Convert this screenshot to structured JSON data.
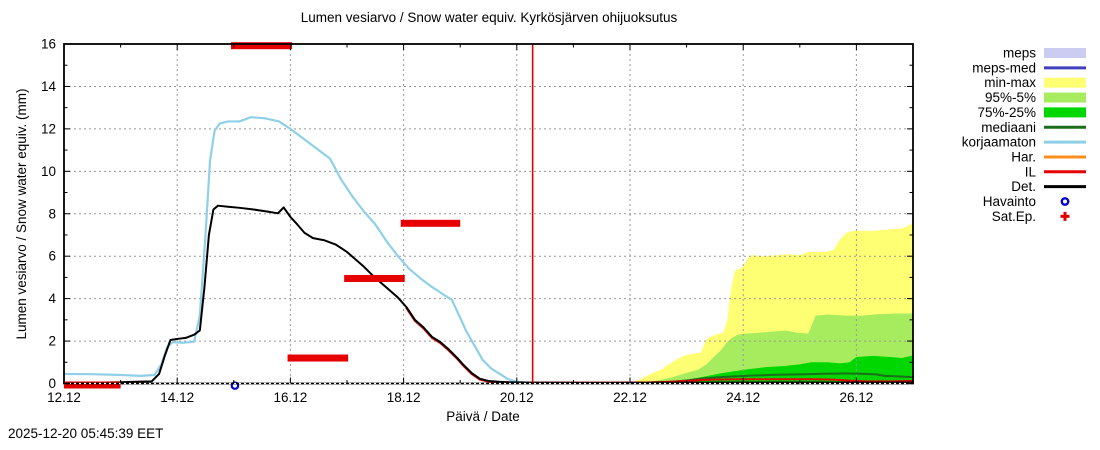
{
  "title": "Lumen vesiarvo / Snow water equiv.  Kyrkösjärven ohijuoksutus",
  "timestamp": "2025-12-20 05:45:39 EET",
  "axes": {
    "x_label": "Päivä / Date",
    "y_label": "Lumen vesiarvo / Snow water equiv. (mm)"
  },
  "legend": {
    "items": [
      {
        "label": "meps",
        "type": "band",
        "color": "#ccccf2"
      },
      {
        "label": "meps-med",
        "type": "line",
        "color": "#4040bf"
      },
      {
        "label": "min-max",
        "type": "band",
        "color": "#ffff73"
      },
      {
        "label": "95%-5%",
        "type": "band",
        "color": "#a6ec5e"
      },
      {
        "label": "75%-25%",
        "type": "band",
        "color": "#00d600"
      },
      {
        "label": "mediaani",
        "type": "line",
        "color": "#1c6e1c"
      },
      {
        "label": "korjaamaton",
        "type": "line",
        "color": "#8fd0e8"
      },
      {
        "label": "Har.",
        "type": "line",
        "color": "#ff8c1e"
      },
      {
        "label": "IL",
        "type": "line",
        "color": "#e60000"
      },
      {
        "label": "Det.",
        "type": "line",
        "color": "#000000"
      },
      {
        "label": "Havainto",
        "type": "marker-circle",
        "color": "#0000dd"
      },
      {
        "label": "Sat.Ep.",
        "type": "marker-plus",
        "color": "#e60000"
      }
    ]
  },
  "chart_data": {
    "type": "line",
    "title": "Lumen vesiarvo / Snow water equiv.  Kyrkösjärven ohijuoksutus",
    "xlabel": "Päivä / Date",
    "ylabel": "Lumen vesiarvo / Snow water equiv. (mm)",
    "x_axis": {
      "min": 12,
      "max": 27,
      "unit": "day of December",
      "tick_values": [
        12,
        14,
        16,
        18,
        20,
        22,
        24,
        26
      ],
      "tick_labels": [
        "12.12",
        "14.12",
        "16.12",
        "18.12",
        "20.12",
        "22.12",
        "24.12",
        "26.12"
      ],
      "minor_tick_step": 1,
      "grid_values": [
        14,
        16,
        18,
        20,
        22,
        24,
        26
      ]
    },
    "y_axis": {
      "min": 0,
      "max": 16,
      "tick_values": [
        0,
        2,
        4,
        6,
        8,
        10,
        12,
        14,
        16
      ],
      "tick_labels": [
        "0",
        "2",
        "4",
        "6",
        "8",
        "10",
        "12",
        "14",
        "16"
      ],
      "minor_tick_step": 1,
      "grid_values": [
        2,
        4,
        6,
        8,
        10,
        12,
        14
      ]
    },
    "grid": true,
    "now_line": {
      "x": 20.28,
      "color": "#dd0000"
    },
    "bands": [
      {
        "name": "min-max",
        "color": "#ffff73",
        "baseline": 0,
        "top": [
          [
            21.95,
            0.02
          ],
          [
            22.1,
            0.1
          ],
          [
            22.25,
            0.3
          ],
          [
            22.4,
            0.5
          ],
          [
            22.55,
            0.65
          ],
          [
            22.65,
            0.85
          ],
          [
            22.8,
            1.1
          ],
          [
            22.95,
            1.3
          ],
          [
            23.1,
            1.4
          ],
          [
            23.25,
            1.45
          ],
          [
            23.35,
            2.1
          ],
          [
            23.5,
            2.3
          ],
          [
            23.65,
            2.4
          ],
          [
            23.72,
            3.0
          ],
          [
            23.78,
            4.4
          ],
          [
            23.85,
            5.3
          ],
          [
            24.0,
            5.5
          ],
          [
            24.08,
            5.9
          ],
          [
            24.15,
            6.05
          ],
          [
            24.35,
            6.0
          ],
          [
            24.6,
            6.05
          ],
          [
            24.8,
            6.1
          ],
          [
            25.0,
            6.05
          ],
          [
            25.15,
            6.2
          ],
          [
            25.45,
            6.2
          ],
          [
            25.6,
            6.3
          ],
          [
            25.7,
            6.75
          ],
          [
            25.82,
            7.1
          ],
          [
            25.95,
            7.2
          ],
          [
            26.3,
            7.2
          ],
          [
            26.55,
            7.25
          ],
          [
            26.8,
            7.3
          ],
          [
            27.0,
            7.55
          ]
        ]
      },
      {
        "name": "95%-5%",
        "color": "#a6ec5e",
        "baseline": 0,
        "top": [
          [
            22.2,
            0.02
          ],
          [
            22.5,
            0.15
          ],
          [
            22.75,
            0.3
          ],
          [
            23.0,
            0.5
          ],
          [
            23.2,
            0.65
          ],
          [
            23.35,
            0.9
          ],
          [
            23.5,
            1.3
          ],
          [
            23.6,
            1.55
          ],
          [
            23.7,
            1.9
          ],
          [
            23.8,
            2.15
          ],
          [
            23.9,
            2.3
          ],
          [
            24.05,
            2.35
          ],
          [
            24.3,
            2.4
          ],
          [
            24.55,
            2.45
          ],
          [
            24.75,
            2.5
          ],
          [
            24.95,
            2.4
          ],
          [
            25.15,
            2.35
          ],
          [
            25.28,
            3.2
          ],
          [
            25.5,
            3.25
          ],
          [
            25.8,
            3.2
          ],
          [
            26.1,
            3.2
          ],
          [
            26.4,
            3.27
          ],
          [
            26.7,
            3.3
          ],
          [
            27.0,
            3.3
          ]
        ]
      },
      {
        "name": "75%-25%",
        "color": "#00d600",
        "baseline": 0,
        "top": [
          [
            22.45,
            0.02
          ],
          [
            22.7,
            0.08
          ],
          [
            23.0,
            0.18
          ],
          [
            23.3,
            0.32
          ],
          [
            23.6,
            0.48
          ],
          [
            23.9,
            0.6
          ],
          [
            24.1,
            0.68
          ],
          [
            24.4,
            0.77
          ],
          [
            24.7,
            0.82
          ],
          [
            25.0,
            0.9
          ],
          [
            25.2,
            1.0
          ],
          [
            25.5,
            1.0
          ],
          [
            25.72,
            0.95
          ],
          [
            25.88,
            1.0
          ],
          [
            26.0,
            1.25
          ],
          [
            26.3,
            1.3
          ],
          [
            26.6,
            1.25
          ],
          [
            26.8,
            1.2
          ],
          [
            27.0,
            1.32
          ]
        ]
      }
    ],
    "series": [
      {
        "name": "korjaamaton",
        "color": "#8fd0e8",
        "width": 2.2,
        "points": [
          [
            12.0,
            0.45
          ],
          [
            12.5,
            0.44
          ],
          [
            13.0,
            0.4
          ],
          [
            13.35,
            0.36
          ],
          [
            13.6,
            0.4
          ],
          [
            13.72,
            0.9
          ],
          [
            13.82,
            1.7
          ],
          [
            13.92,
            1.95
          ],
          [
            14.1,
            1.92
          ],
          [
            14.3,
            1.97
          ],
          [
            14.4,
            3.2
          ],
          [
            14.5,
            7.0
          ],
          [
            14.58,
            10.5
          ],
          [
            14.66,
            11.9
          ],
          [
            14.75,
            12.25
          ],
          [
            14.9,
            12.35
          ],
          [
            15.1,
            12.35
          ],
          [
            15.3,
            12.55
          ],
          [
            15.55,
            12.5
          ],
          [
            15.8,
            12.35
          ],
          [
            16.0,
            12.0
          ],
          [
            16.2,
            11.6
          ],
          [
            16.5,
            11.0
          ],
          [
            16.7,
            10.6
          ],
          [
            16.9,
            9.6
          ],
          [
            17.1,
            8.8
          ],
          [
            17.3,
            8.1
          ],
          [
            17.5,
            7.5
          ],
          [
            17.7,
            6.7
          ],
          [
            17.9,
            6.0
          ],
          [
            18.1,
            5.4
          ],
          [
            18.3,
            4.95
          ],
          [
            18.5,
            4.55
          ],
          [
            18.7,
            4.2
          ],
          [
            18.85,
            3.95
          ],
          [
            19.0,
            3.1
          ],
          [
            19.1,
            2.5
          ],
          [
            19.25,
            1.8
          ],
          [
            19.4,
            1.1
          ],
          [
            19.55,
            0.7
          ],
          [
            19.7,
            0.45
          ],
          [
            19.85,
            0.2
          ],
          [
            20.0,
            0.08
          ],
          [
            20.25,
            0.02
          ]
        ]
      },
      {
        "name": "mediaani",
        "color": "#1c6e1c",
        "width": 2,
        "points": [
          [
            22.4,
            0.02
          ],
          [
            22.7,
            0.07
          ],
          [
            23.0,
            0.14
          ],
          [
            23.3,
            0.24
          ],
          [
            23.6,
            0.3
          ],
          [
            23.9,
            0.34
          ],
          [
            24.2,
            0.38
          ],
          [
            24.6,
            0.41
          ],
          [
            25.0,
            0.43
          ],
          [
            25.4,
            0.46
          ],
          [
            25.8,
            0.47
          ],
          [
            26.1,
            0.46
          ],
          [
            26.35,
            0.43
          ],
          [
            26.5,
            0.36
          ],
          [
            26.75,
            0.33
          ],
          [
            27.0,
            0.3
          ]
        ]
      },
      {
        "name": "IL",
        "color": "#e60000",
        "width": 2,
        "points": [
          [
            18.05,
            3.55
          ],
          [
            18.2,
            2.95
          ],
          [
            18.35,
            2.6
          ],
          [
            18.5,
            2.15
          ],
          [
            18.65,
            1.9
          ],
          [
            18.8,
            1.55
          ],
          [
            18.95,
            1.15
          ],
          [
            19.05,
            0.85
          ],
          [
            19.2,
            0.45
          ],
          [
            19.35,
            0.18
          ],
          [
            19.5,
            0.09
          ],
          [
            19.9,
            0.05
          ],
          [
            20.5,
            0.04
          ],
          [
            21.5,
            0.04
          ],
          [
            22.3,
            0.05
          ],
          [
            22.7,
            0.08
          ],
          [
            23.0,
            0.12
          ],
          [
            23.3,
            0.17
          ],
          [
            23.6,
            0.19
          ],
          [
            24.0,
            0.2
          ],
          [
            24.6,
            0.2
          ],
          [
            25.2,
            0.2
          ],
          [
            25.6,
            0.18
          ],
          [
            25.9,
            0.13
          ],
          [
            26.2,
            0.1
          ],
          [
            26.6,
            0.1
          ],
          [
            27.0,
            0.12
          ]
        ]
      },
      {
        "name": "Det",
        "color": "#000000",
        "width": 2,
        "points": [
          [
            12.0,
            0.02
          ],
          [
            13.0,
            0.06
          ],
          [
            13.55,
            0.1
          ],
          [
            13.68,
            0.45
          ],
          [
            13.78,
            1.3
          ],
          [
            13.88,
            2.05
          ],
          [
            14.0,
            2.1
          ],
          [
            14.15,
            2.15
          ],
          [
            14.3,
            2.3
          ],
          [
            14.4,
            2.5
          ],
          [
            14.48,
            4.5
          ],
          [
            14.56,
            7.0
          ],
          [
            14.64,
            8.2
          ],
          [
            14.72,
            8.38
          ],
          [
            14.9,
            8.33
          ],
          [
            15.1,
            8.28
          ],
          [
            15.35,
            8.2
          ],
          [
            15.6,
            8.1
          ],
          [
            15.78,
            8.02
          ],
          [
            15.88,
            8.3
          ],
          [
            16.0,
            7.85
          ],
          [
            16.12,
            7.5
          ],
          [
            16.25,
            7.1
          ],
          [
            16.4,
            6.85
          ],
          [
            16.6,
            6.75
          ],
          [
            16.8,
            6.55
          ],
          [
            17.0,
            6.2
          ],
          [
            17.15,
            5.85
          ],
          [
            17.3,
            5.5
          ],
          [
            17.45,
            5.1
          ],
          [
            17.6,
            4.75
          ],
          [
            17.75,
            4.4
          ],
          [
            17.9,
            4.05
          ],
          [
            18.05,
            3.6
          ],
          [
            18.2,
            3.0
          ],
          [
            18.35,
            2.65
          ],
          [
            18.5,
            2.2
          ],
          [
            18.65,
            1.95
          ],
          [
            18.8,
            1.6
          ],
          [
            18.95,
            1.2
          ],
          [
            19.05,
            0.9
          ],
          [
            19.2,
            0.5
          ],
          [
            19.35,
            0.22
          ],
          [
            19.5,
            0.12
          ],
          [
            19.8,
            0.06
          ],
          [
            20.3,
            0.04
          ],
          [
            21.5,
            0.03
          ],
          [
            23.0,
            0.04
          ],
          [
            24.5,
            0.05
          ],
          [
            26.0,
            0.05
          ],
          [
            27.0,
            0.05
          ]
        ]
      }
    ],
    "markers": {
      "havainto": {
        "color": "#0000dd",
        "points": [
          [
            15.02,
            -0.1
          ]
        ]
      },
      "sat_ep_bars": {
        "color": "#e60000",
        "thickness_px": 7,
        "bars": [
          {
            "x1": 12.0,
            "x2": 13.0,
            "y": -0.07
          },
          {
            "x1": 14.95,
            "x2": 16.03,
            "y": 15.92
          },
          {
            "x1": 15.95,
            "x2": 17.02,
            "y": 1.2
          },
          {
            "x1": 16.95,
            "x2": 18.02,
            "y": 4.95
          },
          {
            "x1": 17.95,
            "x2": 19.0,
            "y": 7.55
          }
        ]
      }
    }
  }
}
